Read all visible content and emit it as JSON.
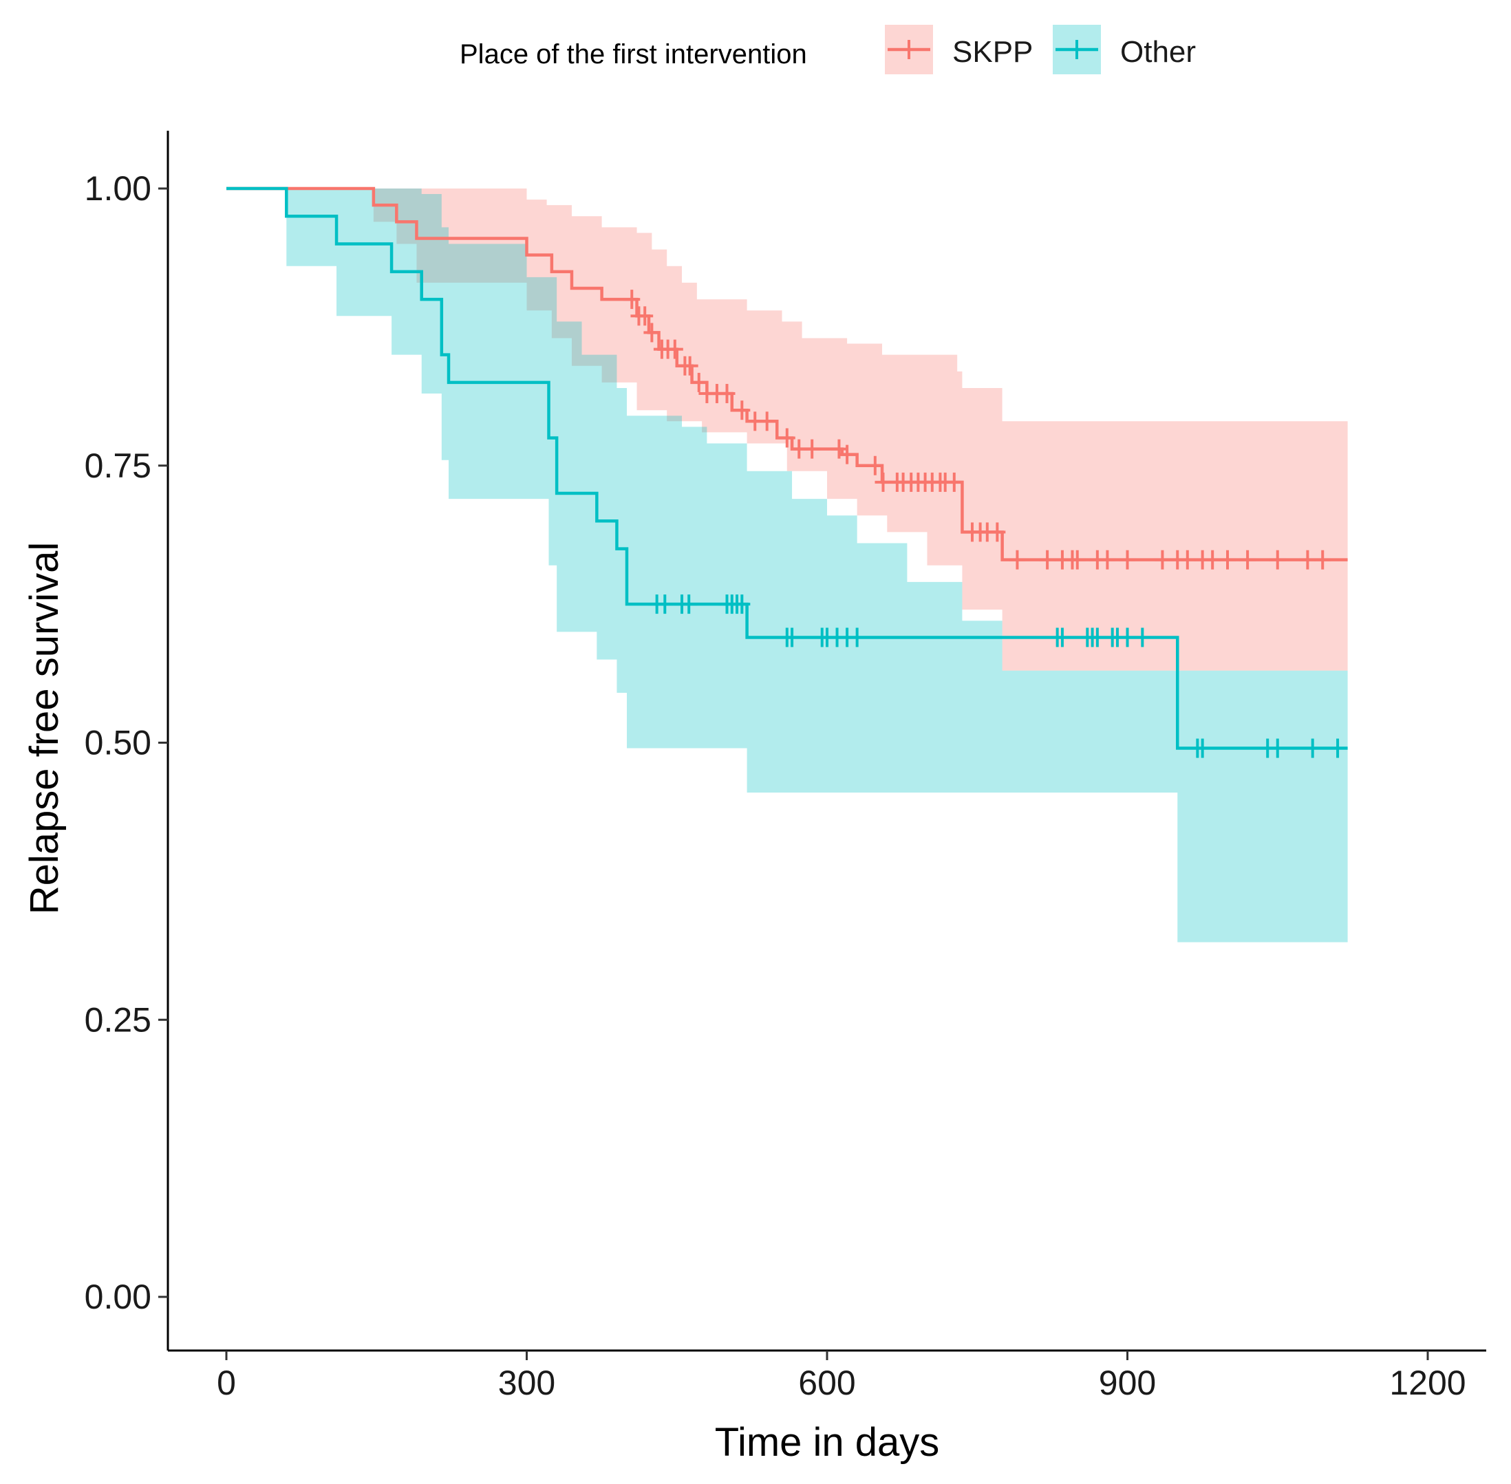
{
  "chart_data": {
    "type": "line",
    "subtype": "kaplan-meier survival curve with confidence bands",
    "title": "",
    "xlabel": "Time in days",
    "ylabel": "Relapse free survival",
    "xlim": [
      -96,
      1200
    ],
    "ylim": [
      -0.05,
      1.05
    ],
    "x_ticks": [
      0,
      300,
      600,
      900,
      1200
    ],
    "y_ticks": [
      0.0,
      0.25,
      0.5,
      0.75,
      1.0
    ],
    "x_tick_labels": [
      "0",
      "300",
      "600",
      "900",
      "1200"
    ],
    "y_tick_labels": [
      "0.00",
      "0.25",
      "0.50",
      "0.75",
      "1.00"
    ],
    "grid": false,
    "legend": {
      "title": "Place of the first intervention",
      "position": "top",
      "entries": [
        "SKPP",
        "Other"
      ]
    },
    "series": [
      {
        "name": "SKPP",
        "color": "#F8766D",
        "band_color": "#FFD0CC",
        "steps": [
          [
            0,
            1.0
          ],
          [
            147,
            0.985
          ],
          [
            170,
            0.97
          ],
          [
            190,
            0.955
          ],
          [
            300,
            0.94
          ],
          [
            325,
            0.925
          ],
          [
            345,
            0.91
          ],
          [
            375,
            0.9
          ],
          [
            410,
            0.885
          ],
          [
            422,
            0.87
          ],
          [
            432,
            0.855
          ],
          [
            450,
            0.84
          ],
          [
            465,
            0.825
          ],
          [
            480,
            0.815
          ],
          [
            505,
            0.8
          ],
          [
            520,
            0.79
          ],
          [
            550,
            0.775
          ],
          [
            565,
            0.765
          ],
          [
            615,
            0.76
          ],
          [
            630,
            0.75
          ],
          [
            655,
            0.735
          ],
          [
            735,
            0.69
          ],
          [
            775,
            0.665
          ],
          [
            1120,
            0.665
          ]
        ],
        "ci_lower": [
          [
            0,
            1.0
          ],
          [
            147,
            0.97
          ],
          [
            170,
            0.95
          ],
          [
            190,
            0.915
          ],
          [
            300,
            0.89
          ],
          [
            325,
            0.865
          ],
          [
            345,
            0.84
          ],
          [
            375,
            0.825
          ],
          [
            410,
            0.8
          ],
          [
            440,
            0.79
          ],
          [
            475,
            0.78
          ],
          [
            520,
            0.77
          ],
          [
            560,
            0.745
          ],
          [
            600,
            0.72
          ],
          [
            630,
            0.705
          ],
          [
            660,
            0.69
          ],
          [
            700,
            0.66
          ],
          [
            735,
            0.62
          ],
          [
            775,
            0.565
          ],
          [
            1120,
            0.565
          ]
        ],
        "ci_upper": [
          [
            0,
            1.0
          ],
          [
            300,
            0.99
          ],
          [
            320,
            0.985
          ],
          [
            345,
            0.975
          ],
          [
            375,
            0.965
          ],
          [
            410,
            0.96
          ],
          [
            425,
            0.945
          ],
          [
            440,
            0.93
          ],
          [
            455,
            0.915
          ],
          [
            470,
            0.9
          ],
          [
            520,
            0.89
          ],
          [
            555,
            0.88
          ],
          [
            575,
            0.865
          ],
          [
            620,
            0.86
          ],
          [
            655,
            0.85
          ],
          [
            730,
            0.835
          ],
          [
            735,
            0.82
          ],
          [
            775,
            0.79
          ],
          [
            1120,
            0.79
          ]
        ],
        "censor_times": [
          405,
          412,
          418,
          425,
          435,
          441,
          448,
          458,
          463,
          472,
          480,
          490,
          500,
          515,
          528,
          540,
          560,
          572,
          585,
          612,
          620,
          648,
          656,
          670,
          676,
          684,
          691,
          698,
          705,
          713,
          718,
          727,
          745,
          753,
          760,
          770,
          790,
          820,
          835,
          845,
          850,
          870,
          880,
          900,
          935,
          950,
          960,
          975,
          985,
          1000,
          1020,
          1050,
          1080,
          1095
        ]
      },
      {
        "name": "Other",
        "color": "#00BFC4",
        "band_color": "#B2EBEC",
        "steps": [
          [
            0,
            1.0
          ],
          [
            60,
            0.975
          ],
          [
            110,
            0.95
          ],
          [
            165,
            0.925
          ],
          [
            195,
            0.9
          ],
          [
            215,
            0.85
          ],
          [
            222,
            0.825
          ],
          [
            322,
            0.775
          ],
          [
            330,
            0.725
          ],
          [
            370,
            0.7
          ],
          [
            390,
            0.675
          ],
          [
            400,
            0.625
          ],
          [
            520,
            0.595
          ],
          [
            950,
            0.495
          ],
          [
            1120,
            0.495
          ]
        ],
        "ci_lower": [
          [
            0,
            1.0
          ],
          [
            60,
            0.93
          ],
          [
            110,
            0.885
          ],
          [
            165,
            0.85
          ],
          [
            195,
            0.815
          ],
          [
            215,
            0.755
          ],
          [
            222,
            0.72
          ],
          [
            322,
            0.66
          ],
          [
            330,
            0.6
          ],
          [
            370,
            0.575
          ],
          [
            390,
            0.545
          ],
          [
            400,
            0.495
          ],
          [
            520,
            0.455
          ],
          [
            950,
            0.32
          ],
          [
            1120,
            0.32
          ]
        ],
        "ci_upper": [
          [
            0,
            1.0
          ],
          [
            60,
            1.0
          ],
          [
            110,
            1.0
          ],
          [
            165,
            1.0
          ],
          [
            195,
            0.995
          ],
          [
            215,
            0.965
          ],
          [
            222,
            0.95
          ],
          [
            300,
            0.92
          ],
          [
            330,
            0.88
          ],
          [
            355,
            0.85
          ],
          [
            390,
            0.82
          ],
          [
            400,
            0.795
          ],
          [
            455,
            0.785
          ],
          [
            480,
            0.77
          ],
          [
            520,
            0.745
          ],
          [
            565,
            0.72
          ],
          [
            600,
            0.705
          ],
          [
            630,
            0.68
          ],
          [
            680,
            0.645
          ],
          [
            735,
            0.61
          ],
          [
            775,
            0.565
          ],
          [
            1120,
            0.565
          ]
        ],
        "censor_times": [
          430,
          438,
          455,
          462,
          500,
          505,
          510,
          515,
          560,
          565,
          595,
          600,
          610,
          620,
          630,
          830,
          835,
          860,
          865,
          870,
          885,
          890,
          900,
          915,
          970,
          975,
          1040,
          1050,
          1085,
          1110
        ]
      }
    ]
  }
}
